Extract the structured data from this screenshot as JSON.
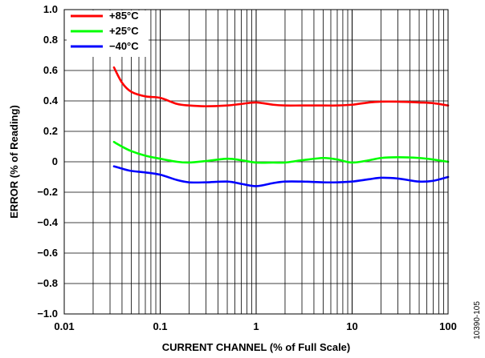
{
  "chart_data": {
    "type": "line",
    "title": "",
    "xlabel": "CURRENT CHANNEL (% of Full Scale)",
    "ylabel": "ERROR (% of Reading)",
    "xscale": "log",
    "xlim": [
      0.01,
      100
    ],
    "ylim": [
      -1.0,
      1.0
    ],
    "grid": true,
    "legend_position": "top-left",
    "x_ticks": [
      0.01,
      0.1,
      1,
      10,
      100
    ],
    "x_tick_labels": [
      "0.01",
      "0.1",
      "1",
      "10",
      "100"
    ],
    "y_ticks": [
      1.0,
      0.8,
      0.6,
      0.4,
      0.2,
      0,
      -0.2,
      -0.4,
      -0.6,
      -0.8,
      -1.0
    ],
    "y_tick_labels": [
      "1.0",
      "0.8",
      "0.6",
      "0.4",
      "0.2",
      "0",
      "−0.2",
      "−0.4",
      "−0.6",
      "−0.8",
      "−1.0"
    ],
    "series": [
      {
        "name": "+85°C",
        "color": "#ff0000",
        "x": [
          0.033,
          0.04,
          0.05,
          0.07,
          0.1,
          0.15,
          0.2,
          0.3,
          0.5,
          0.7,
          1,
          1.5,
          2,
          3,
          5,
          7,
          10,
          15,
          20,
          30,
          50,
          70,
          100
        ],
        "y": [
          0.62,
          0.52,
          0.46,
          0.43,
          0.42,
          0.38,
          0.37,
          0.365,
          0.37,
          0.38,
          0.39,
          0.375,
          0.37,
          0.37,
          0.37,
          0.37,
          0.375,
          0.39,
          0.395,
          0.395,
          0.39,
          0.385,
          0.37
        ]
      },
      {
        "name": "+25°C",
        "color": "#00ff00",
        "x": [
          0.033,
          0.04,
          0.05,
          0.07,
          0.1,
          0.15,
          0.2,
          0.3,
          0.5,
          0.7,
          1,
          1.5,
          2,
          3,
          5,
          7,
          10,
          15,
          20,
          30,
          50,
          70,
          100
        ],
        "y": [
          0.13,
          0.1,
          0.07,
          0.04,
          0.02,
          0.0,
          -0.005,
          0.005,
          0.02,
          0.01,
          -0.005,
          -0.005,
          -0.005,
          0.01,
          0.025,
          0.015,
          -0.005,
          0.01,
          0.025,
          0.03,
          0.025,
          0.015,
          0.0
        ]
      },
      {
        "name": "−40°C",
        "color": "#0000ff",
        "x": [
          0.033,
          0.04,
          0.05,
          0.07,
          0.1,
          0.15,
          0.2,
          0.3,
          0.5,
          0.7,
          1,
          1.5,
          2,
          3,
          5,
          7,
          10,
          15,
          20,
          30,
          50,
          70,
          100
        ],
        "y": [
          -0.03,
          -0.045,
          -0.06,
          -0.07,
          -0.085,
          -0.12,
          -0.135,
          -0.135,
          -0.13,
          -0.145,
          -0.16,
          -0.14,
          -0.13,
          -0.13,
          -0.135,
          -0.135,
          -0.13,
          -0.115,
          -0.105,
          -0.11,
          -0.13,
          -0.125,
          -0.1
        ]
      }
    ]
  },
  "figure_id": "10390-105"
}
